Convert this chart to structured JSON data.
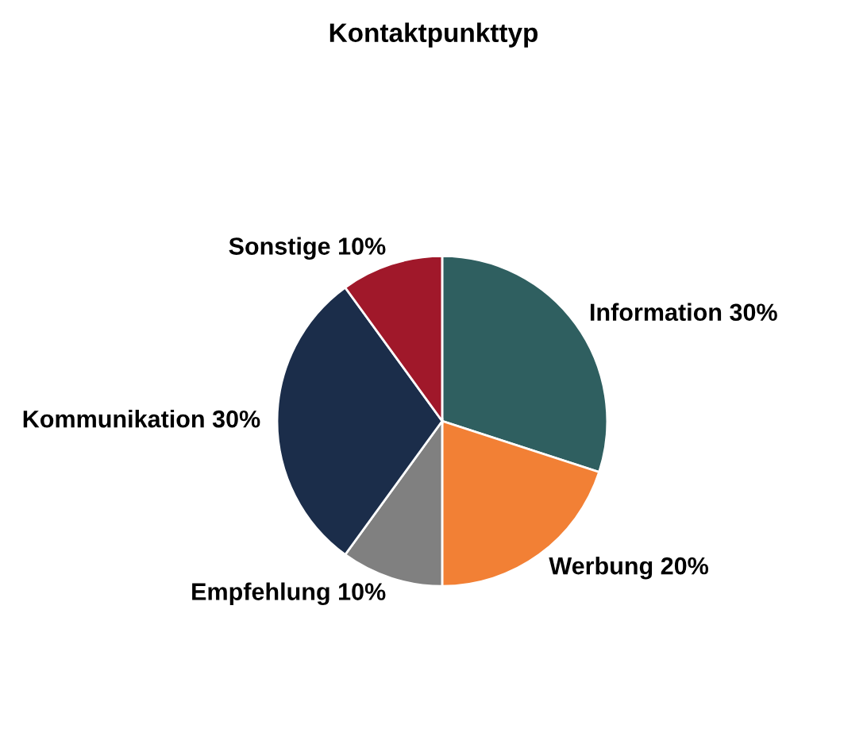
{
  "chart_data": {
    "type": "pie",
    "title": "Kontaktpunkttyp",
    "categories": [
      "Information",
      "Werbung",
      "Empfehlung",
      "Kommunikation",
      "Sonstige"
    ],
    "values": [
      30,
      20,
      10,
      30,
      10
    ],
    "value_labels": [
      "30%",
      "20%",
      "10%",
      "30%",
      "10%"
    ],
    "colors": [
      "#2f5f60",
      "#f28035",
      "#808080",
      "#1b2d4a",
      "#a0182a"
    ],
    "legend": false
  }
}
